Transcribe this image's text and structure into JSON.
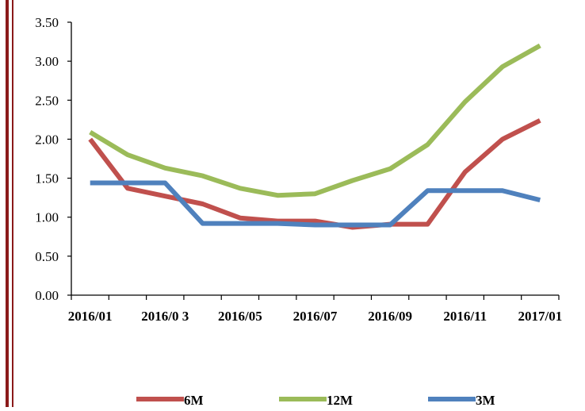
{
  "chart_data": {
    "type": "line",
    "title": "",
    "xlabel": "",
    "ylabel": "",
    "ylim": [
      0,
      3.5
    ],
    "y_ticks": [
      "0.00",
      "0.50",
      "1.00",
      "1.50",
      "2.00",
      "2.50",
      "3.00",
      "3.50"
    ],
    "x_tick_labels": [
      "2016/01",
      "2016/0 3",
      "2016/05",
      "2016/07",
      "2016/09",
      "2016/11",
      "2017/01"
    ],
    "x": [
      "2016/01",
      "2016/02",
      "2016/03",
      "2016/04",
      "2016/05",
      "2016/06",
      "2016/07",
      "2016/08",
      "2016/09",
      "2016/10",
      "2016/11",
      "2016/12",
      "2017/01"
    ],
    "grid": false,
    "legend_position": "bottom",
    "series": [
      {
        "name": "6M",
        "color": "#c0504d",
        "values": [
          2.0,
          1.37,
          1.27,
          1.17,
          0.99,
          0.95,
          0.95,
          0.87,
          0.91,
          0.91,
          1.58,
          2.0,
          2.24
        ]
      },
      {
        "name": "12M",
        "color": "#9bbb59",
        "values": [
          2.09,
          1.8,
          1.63,
          1.53,
          1.37,
          1.28,
          1.3,
          1.47,
          1.62,
          1.93,
          2.48,
          2.93,
          3.2
        ]
      },
      {
        "name": "3M",
        "color": "#4f81bd",
        "values": [
          1.44,
          1.44,
          1.44,
          0.92,
          0.92,
          0.92,
          0.9,
          0.9,
          0.9,
          1.34,
          1.34,
          1.34,
          1.22
        ]
      }
    ]
  }
}
